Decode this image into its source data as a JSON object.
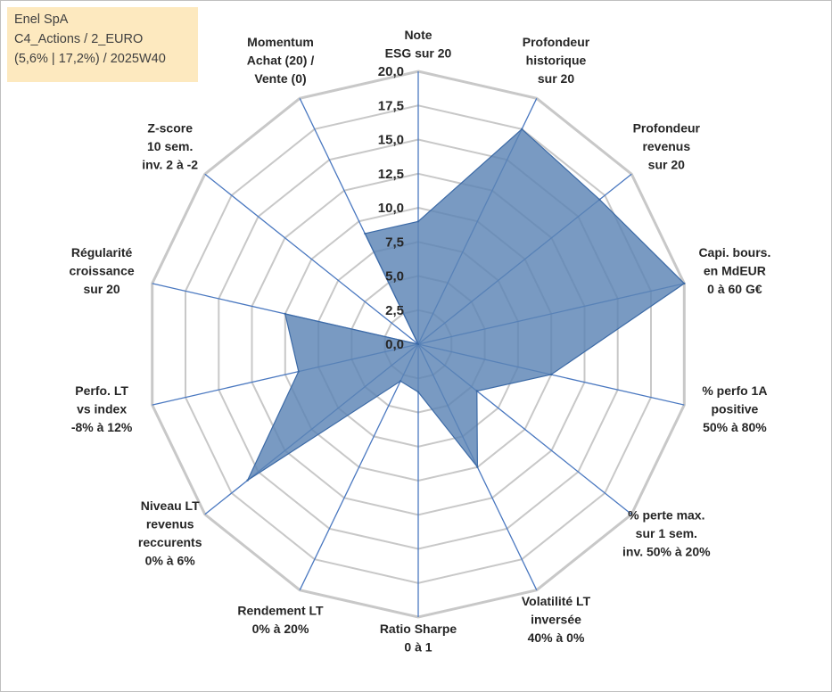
{
  "title_box": {
    "line1": "Enel SpA",
    "line2": "C4_Actions / 2_EURO",
    "line3": "(5,6% | 17,2%) / 2025W40"
  },
  "chart_data": {
    "type": "radar",
    "rmin": 0,
    "rmax": 20,
    "tick_step": 2.5,
    "tick_labels": [
      "0,0",
      "2,5",
      "5,0",
      "7,5",
      "10,0",
      "12,5",
      "15,0",
      "17,5",
      "20,0"
    ],
    "grid": true,
    "legend": "none",
    "colors": {
      "fill": "#5b84b5",
      "stroke": "#3c6aa6",
      "grid": "#c8c8c8",
      "spoke": "#4a78c0"
    },
    "categories": [
      [
        "Note",
        "ESG sur 20"
      ],
      [
        "Profondeur",
        "historique",
        "sur 20"
      ],
      [
        "Profondeur",
        "revenus",
        "sur 20"
      ],
      [
        "Capi. bours.",
        "en MdEUR",
        "0 à 60 G€"
      ],
      [
        "% perfo 1A",
        "positive",
        "50% à 80%"
      ],
      [
        "% perte max.",
        "sur 1 sem.",
        "inv. 50% à 20%"
      ],
      [
        "Volatilité LT",
        "inversée",
        "40% à 0%"
      ],
      [
        "Ratio Sharpe",
        "0 à 1"
      ],
      [
        "Rendement LT",
        "0% à 20%"
      ],
      [
        "Niveau LT",
        "revenus",
        "reccurents",
        "0% à 6%"
      ],
      [
        "Perfo. LT",
        "vs index",
        "-8% à 12%"
      ],
      [
        "Régularité",
        "croissance",
        "sur 20"
      ],
      [
        "Z-score",
        "10 sem.",
        "inv. 2 à -2"
      ],
      [
        "Momentum",
        "Achat (20) /",
        "Vente (0)"
      ]
    ],
    "values": [
      9.0,
      17.5,
      17.0,
      20.0,
      10.0,
      5.5,
      10.0,
      3.5,
      3.0,
      16.0,
      9.0,
      10.0,
      0.0,
      9.0
    ]
  }
}
